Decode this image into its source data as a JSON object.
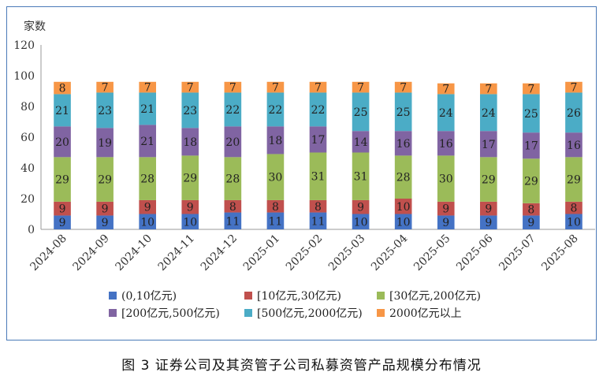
{
  "chart_data": {
    "type": "bar",
    "stacked": true,
    "ylabel": "家数",
    "ylim": [
      0,
      120
    ],
    "yticks": [
      0,
      20,
      40,
      60,
      80,
      100,
      120
    ],
    "grid": false,
    "legend_position": "bottom",
    "categories": [
      "2024-08",
      "2024-09",
      "2024-10",
      "2024-11",
      "2024-12",
      "2025-01",
      "2025-02",
      "2025-03",
      "2025-04",
      "2025-05",
      "2025-06",
      "2025-07",
      "2025-08"
    ],
    "series": [
      {
        "name": "(0,10亿元)",
        "color": "#4472c4",
        "values": [
          9,
          9,
          10,
          10,
          11,
          11,
          11,
          10,
          10,
          9,
          9,
          9,
          10
        ]
      },
      {
        "name": "[10亿元,30亿元)",
        "color": "#c0504d",
        "values": [
          9,
          9,
          9,
          9,
          8,
          8,
          8,
          9,
          10,
          9,
          9,
          8,
          8
        ]
      },
      {
        "name": "[30亿元,200亿元)",
        "color": "#9bbb59",
        "values": [
          29,
          29,
          28,
          29,
          28,
          30,
          31,
          31,
          28,
          30,
          29,
          29,
          29
        ]
      },
      {
        "name": "[200亿元,500亿元)",
        "color": "#8064a2",
        "values": [
          20,
          19,
          21,
          18,
          20,
          18,
          17,
          14,
          16,
          16,
          17,
          17,
          16
        ]
      },
      {
        "name": "[500亿元,2000亿元)",
        "color": "#4bacc6",
        "values": [
          21,
          23,
          21,
          23,
          22,
          22,
          22,
          25,
          25,
          24,
          24,
          25,
          26
        ]
      },
      {
        "name": "2000亿元以上",
        "color": "#f79646",
        "values": [
          8,
          7,
          7,
          7,
          7,
          7,
          7,
          7,
          7,
          7,
          7,
          7,
          7
        ]
      }
    ]
  },
  "caption": "图 3   证券公司及其资管子公司私募资管产品规模分布情况"
}
